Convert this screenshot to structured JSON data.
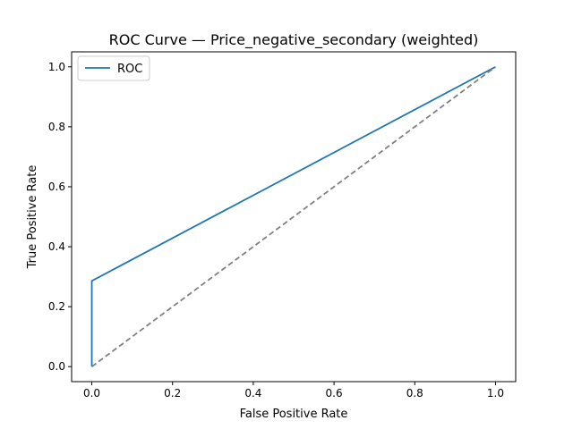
{
  "chart_data": {
    "type": "line",
    "title": "ROC Curve — Price_negative_secondary (weighted)",
    "xlabel": "False Positive Rate",
    "ylabel": "True Positive Rate",
    "xlim": [
      -0.05,
      1.05
    ],
    "ylim": [
      -0.05,
      1.05
    ],
    "x_ticks": [
      0.0,
      0.2,
      0.4,
      0.6,
      0.8,
      1.0
    ],
    "y_ticks": [
      0.0,
      0.2,
      0.4,
      0.6,
      0.8,
      1.0
    ],
    "x_tick_labels": [
      "0.0",
      "0.2",
      "0.4",
      "0.6",
      "0.8",
      "1.0"
    ],
    "y_tick_labels": [
      "0.0",
      "0.2",
      "0.4",
      "0.6",
      "0.8",
      "1.0"
    ],
    "grid": false,
    "legend_position": "top-left",
    "series": [
      {
        "name": "ROC",
        "color": "#1f77b4",
        "style": "solid",
        "x": [
          0.0,
          0.0,
          1.0
        ],
        "y": [
          0.0,
          0.286,
          1.0
        ]
      },
      {
        "color": "#808080",
        "style": "dashed",
        "x": [
          0.0,
          1.0
        ],
        "y": [
          0.0,
          1.0
        ]
      }
    ]
  }
}
